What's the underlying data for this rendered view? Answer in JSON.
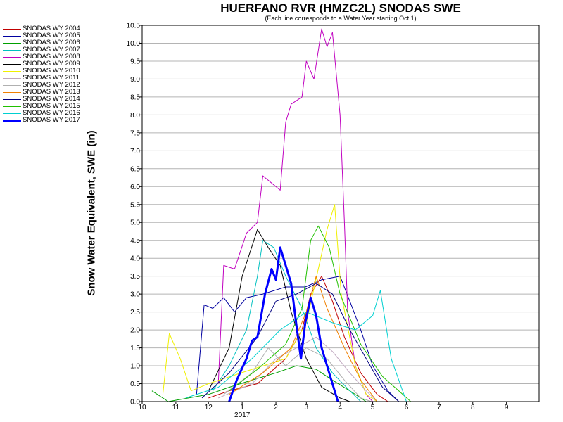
{
  "chart_data": {
    "type": "line",
    "title": "HUERFANO RVR (HMZC2L) SNODAS SWE",
    "subtitle": "(Each line corresponds to a Water Year starting Oct 1)",
    "ylabel": "Snow Water Equivalent, SWE (in)",
    "xlabel": "",
    "year_label": "2017",
    "x_ticks": [
      "10",
      "11",
      "12",
      "1",
      "2",
      "3",
      "4",
      "5",
      "6",
      "7",
      "8",
      "9"
    ],
    "y_ticks": [
      "0.0",
      "0.5",
      "1.0",
      "1.5",
      "2.0",
      "2.5",
      "3.0",
      "3.5",
      "4.0",
      "4.5",
      "5.0",
      "5.5",
      "6.0",
      "6.5",
      "7.0",
      "7.5",
      "8.0",
      "8.5",
      "9.0",
      "9.5",
      "10.0",
      "10.5"
    ],
    "ylim": [
      0,
      10.5
    ],
    "xlim": [
      "2016-10-01",
      "2017-09-30"
    ],
    "grid": true,
    "legend_position": "left",
    "series": [
      {
        "name": "SNODAS WY 2004",
        "color": "#c00000",
        "width": 1,
        "points": [
          [
            "2016-12-01",
            0.1
          ],
          [
            "2016-12-20",
            0.3
          ],
          [
            "2017-01-15",
            0.5
          ],
          [
            "2017-02-10",
            1.2
          ],
          [
            "2017-02-25",
            2.0
          ],
          [
            "2017-03-05",
            3.0
          ],
          [
            "2017-03-15",
            3.5
          ],
          [
            "2017-03-25",
            2.8
          ],
          [
            "2017-04-05",
            1.8
          ],
          [
            "2017-04-20",
            0.8
          ],
          [
            "2017-05-05",
            0.2
          ],
          [
            "2017-05-15",
            0.0
          ]
        ]
      },
      {
        "name": "SNODAS WY 2005",
        "color": "#0000a0",
        "width": 1,
        "points": [
          [
            "2016-11-20",
            0.2
          ],
          [
            "2016-11-27",
            2.7
          ],
          [
            "2016-12-05",
            2.6
          ],
          [
            "2016-12-15",
            2.9
          ],
          [
            "2016-12-25",
            2.5
          ],
          [
            "2017-01-05",
            2.9
          ],
          [
            "2017-01-20",
            3.0
          ],
          [
            "2017-02-10",
            3.2
          ],
          [
            "2017-02-28",
            3.2
          ],
          [
            "2017-03-15",
            3.4
          ],
          [
            "2017-04-01",
            3.5
          ],
          [
            "2017-04-10",
            2.8
          ],
          [
            "2017-04-20",
            2.0
          ],
          [
            "2017-05-01",
            1.0
          ],
          [
            "2017-05-15",
            0.3
          ],
          [
            "2017-05-25",
            0.0
          ]
        ]
      },
      {
        "name": "SNODAS WY 2006",
        "color": "#00a000",
        "width": 1,
        "points": [
          [
            "2016-10-10",
            0.3
          ],
          [
            "2016-10-25",
            0.0
          ],
          [
            "2016-12-01",
            0.2
          ],
          [
            "2016-12-20",
            0.4
          ],
          [
            "2017-01-10",
            0.6
          ],
          [
            "2017-02-01",
            0.8
          ],
          [
            "2017-02-20",
            1.0
          ],
          [
            "2017-03-10",
            0.9
          ],
          [
            "2017-03-25",
            0.6
          ],
          [
            "2017-04-10",
            0.3
          ],
          [
            "2017-04-25",
            0.0
          ]
        ]
      },
      {
        "name": "SNODAS WY 2007",
        "color": "#00c0c0",
        "width": 1,
        "points": [
          [
            "2016-12-05",
            0.3
          ],
          [
            "2016-12-20",
            1.0
          ],
          [
            "2017-01-05",
            2.0
          ],
          [
            "2017-01-15",
            3.5
          ],
          [
            "2017-01-20",
            4.5
          ],
          [
            "2017-01-30",
            4.3
          ],
          [
            "2017-02-10",
            3.5
          ],
          [
            "2017-02-25",
            2.6
          ],
          [
            "2017-03-10",
            1.5
          ],
          [
            "2017-03-25",
            0.8
          ],
          [
            "2017-04-10",
            0.3
          ],
          [
            "2017-04-20",
            0.0
          ]
        ]
      },
      {
        "name": "SNODAS WY 2008",
        "color": "#c000c0",
        "width": 1,
        "points": [
          [
            "2016-12-10",
            0.5
          ],
          [
            "2016-12-15",
            3.8
          ],
          [
            "2016-12-25",
            3.7
          ],
          [
            "2017-01-05",
            4.7
          ],
          [
            "2017-01-15",
            5.0
          ],
          [
            "2017-01-20",
            6.3
          ],
          [
            "2017-02-05",
            5.9
          ],
          [
            "2017-02-10",
            7.8
          ],
          [
            "2017-02-15",
            8.3
          ],
          [
            "2017-02-25",
            8.5
          ],
          [
            "2017-03-01",
            9.5
          ],
          [
            "2017-03-08",
            9.0
          ],
          [
            "2017-03-15",
            10.4
          ],
          [
            "2017-03-20",
            9.9
          ],
          [
            "2017-03-25",
            10.3
          ],
          [
            "2017-04-01",
            8.0
          ],
          [
            "2017-04-05",
            5.0
          ],
          [
            "2017-04-08",
            2.5
          ],
          [
            "2017-04-15",
            1.0
          ],
          [
            "2017-04-25",
            0.2
          ],
          [
            "2017-05-01",
            0.0
          ]
        ]
      },
      {
        "name": "SNODAS WY 2009",
        "color": "#000000",
        "width": 1,
        "points": [
          [
            "2016-12-01",
            0.3
          ],
          [
            "2016-12-20",
            1.5
          ],
          [
            "2017-01-01",
            3.5
          ],
          [
            "2017-01-15",
            4.8
          ],
          [
            "2017-01-25",
            4.3
          ],
          [
            "2017-02-05",
            3.8
          ],
          [
            "2017-02-15",
            2.5
          ],
          [
            "2017-03-01",
            1.2
          ],
          [
            "2017-03-15",
            0.4
          ],
          [
            "2017-04-01",
            0.1
          ],
          [
            "2017-04-10",
            0.0
          ]
        ]
      },
      {
        "name": "SNODAS WY 2010",
        "color": "#f0f000",
        "width": 1,
        "points": [
          [
            "2016-10-20",
            0.2
          ],
          [
            "2016-10-26",
            1.9
          ],
          [
            "2016-11-05",
            1.2
          ],
          [
            "2016-11-15",
            0.3
          ],
          [
            "2016-12-01",
            0.5
          ],
          [
            "2017-01-10",
            0.9
          ],
          [
            "2017-02-10",
            1.2
          ],
          [
            "2017-03-01",
            2.2
          ],
          [
            "2017-03-20",
            4.8
          ],
          [
            "2017-03-27",
            5.5
          ],
          [
            "2017-04-02",
            3.0
          ],
          [
            "2017-04-15",
            1.0
          ],
          [
            "2017-04-25",
            0.2
          ],
          [
            "2017-05-05",
            0.0
          ]
        ]
      },
      {
        "name": "SNODAS WY 2011",
        "color": "#c0a8c0",
        "width": 1,
        "points": [
          [
            "2016-12-10",
            0.1
          ],
          [
            "2017-01-10",
            0.5
          ],
          [
            "2017-02-01",
            1.2
          ],
          [
            "2017-02-20",
            1.5
          ],
          [
            "2017-03-10",
            1.8
          ],
          [
            "2017-03-25",
            1.4
          ],
          [
            "2017-04-10",
            0.8
          ],
          [
            "2017-04-25",
            0.3
          ],
          [
            "2017-05-05",
            0.0
          ]
        ]
      },
      {
        "name": "SNODAS WY 2012",
        "color": "#b0b0b0",
        "width": 1,
        "points": [
          [
            "2016-12-15",
            0.2
          ],
          [
            "2017-01-10",
            0.8
          ],
          [
            "2017-01-25",
            1.5
          ],
          [
            "2017-02-10",
            1.0
          ],
          [
            "2017-03-01",
            1.5
          ],
          [
            "2017-03-20",
            1.2
          ],
          [
            "2017-04-05",
            0.6
          ],
          [
            "2017-04-20",
            0.1
          ],
          [
            "2017-04-30",
            0.0
          ]
        ]
      },
      {
        "name": "SNODAS WY 2013",
        "color": "#f08000",
        "width": 1,
        "points": [
          [
            "2016-12-20",
            0.2
          ],
          [
            "2017-01-20",
            0.8
          ],
          [
            "2017-02-15",
            1.5
          ],
          [
            "2017-03-01",
            2.5
          ],
          [
            "2017-03-10",
            3.5
          ],
          [
            "2017-03-20",
            2.6
          ],
          [
            "2017-04-05",
            1.5
          ],
          [
            "2017-04-20",
            0.6
          ],
          [
            "2017-05-05",
            0.0
          ]
        ]
      },
      {
        "name": "SNODAS WY 2014",
        "color": "#000080",
        "width": 1,
        "points": [
          [
            "2016-11-25",
            0.1
          ],
          [
            "2016-12-20",
            0.8
          ],
          [
            "2017-01-15",
            1.8
          ],
          [
            "2017-02-01",
            2.8
          ],
          [
            "2017-02-20",
            3.0
          ],
          [
            "2017-03-10",
            3.3
          ],
          [
            "2017-03-25",
            3.0
          ],
          [
            "2017-04-10",
            2.0
          ],
          [
            "2017-04-25",
            1.2
          ],
          [
            "2017-05-10",
            0.4
          ],
          [
            "2017-05-25",
            0.0
          ]
        ]
      },
      {
        "name": "SNODAS WY 2015",
        "color": "#20c000",
        "width": 1,
        "points": [
          [
            "2016-12-20",
            0.3
          ],
          [
            "2017-01-15",
            0.9
          ],
          [
            "2017-02-10",
            1.6
          ],
          [
            "2017-02-25",
            2.6
          ],
          [
            "2017-03-05",
            4.5
          ],
          [
            "2017-03-12",
            4.9
          ],
          [
            "2017-03-22",
            4.3
          ],
          [
            "2017-04-01",
            3.0
          ],
          [
            "2017-04-20",
            1.6
          ],
          [
            "2017-05-10",
            0.7
          ],
          [
            "2017-05-25",
            0.3
          ],
          [
            "2017-06-05",
            0.0
          ]
        ]
      },
      {
        "name": "SNODAS WY 2016",
        "color": "#00d0d0",
        "width": 1,
        "points": [
          [
            "2016-11-10",
            0.1
          ],
          [
            "2016-12-10",
            0.4
          ],
          [
            "2017-01-10",
            1.2
          ],
          [
            "2017-02-05",
            2.0
          ],
          [
            "2017-03-01",
            2.5
          ],
          [
            "2017-03-25",
            2.2
          ],
          [
            "2017-04-15",
            2.0
          ],
          [
            "2017-05-01",
            2.4
          ],
          [
            "2017-05-08",
            3.1
          ],
          [
            "2017-05-18",
            1.2
          ],
          [
            "2017-06-01",
            0.0
          ]
        ]
      },
      {
        "name": "SNODAS WY 2017",
        "color": "#0000ff",
        "width": 3,
        "points": [
          [
            "2016-12-20",
            0.0
          ],
          [
            "2016-12-27",
            0.6
          ],
          [
            "2017-01-05",
            1.2
          ],
          [
            "2017-01-10",
            1.7
          ],
          [
            "2017-01-15",
            1.8
          ],
          [
            "2017-01-22",
            3.0
          ],
          [
            "2017-01-28",
            3.7
          ],
          [
            "2017-02-01",
            3.4
          ],
          [
            "2017-02-05",
            4.3
          ],
          [
            "2017-02-10",
            3.8
          ],
          [
            "2017-02-15",
            3.3
          ],
          [
            "2017-02-20",
            2.1
          ],
          [
            "2017-02-24",
            1.2
          ],
          [
            "2017-02-28",
            2.2
          ],
          [
            "2017-03-05",
            2.9
          ],
          [
            "2017-03-10",
            2.4
          ],
          [
            "2017-03-15",
            1.5
          ],
          [
            "2017-03-20",
            1.0
          ],
          [
            "2017-03-25",
            0.5
          ],
          [
            "2017-03-30",
            0.0
          ]
        ]
      }
    ]
  }
}
